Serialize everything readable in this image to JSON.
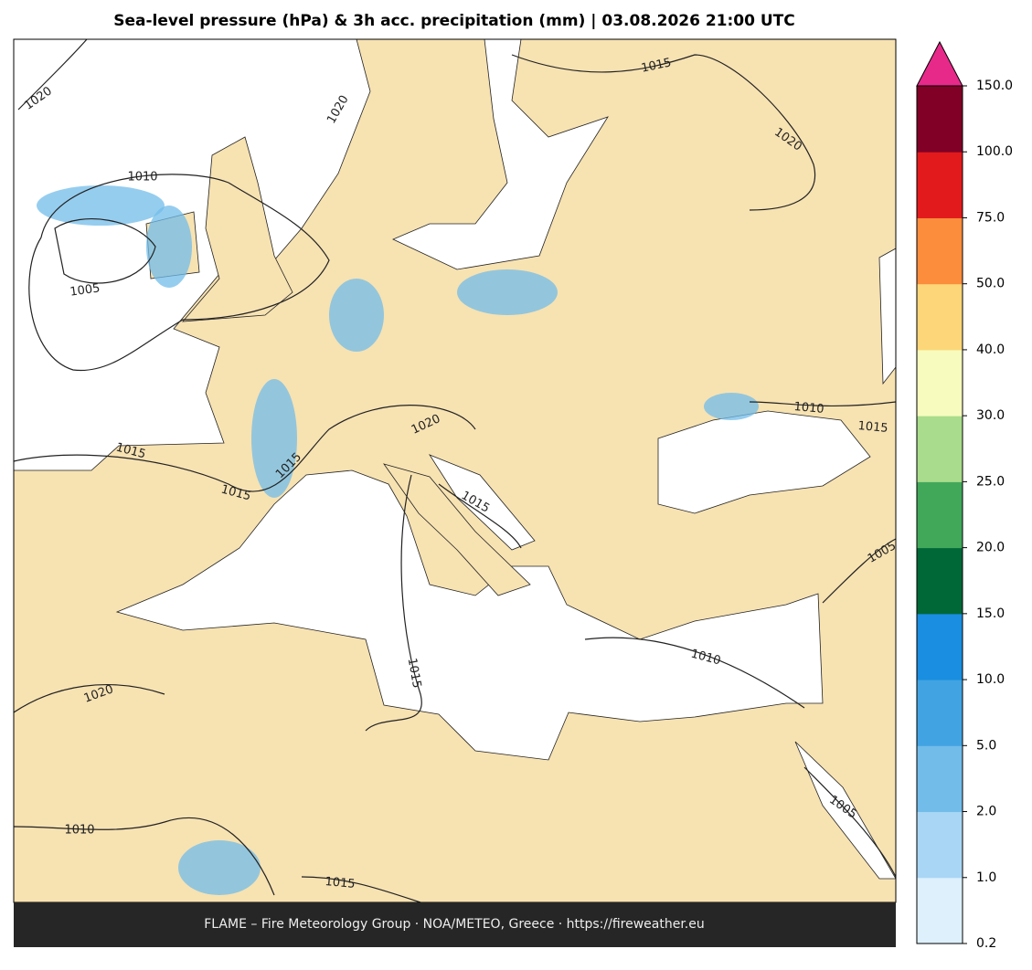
{
  "header": {
    "title": "Sea-level pressure (hPa) & 3h acc. precipitation (mm)  |  03.08.2026 21:00 UTC"
  },
  "map": {
    "isobar_labels": [
      "1020",
      "1015",
      "1020",
      "1020",
      "1010",
      "1005",
      "1015",
      "1015",
      "1020",
      "1015",
      "1015",
      "1010",
      "1015",
      "1005",
      "1010",
      "1015",
      "1020",
      "1010",
      "1015",
      "1005"
    ]
  },
  "colorbar": {
    "ticks": [
      {
        "value": 0.2,
        "label": "0.2"
      },
      {
        "value": 1,
        "label": "1.0"
      },
      {
        "value": 2,
        "label": "2.0"
      },
      {
        "value": 5,
        "label": "5.0"
      },
      {
        "value": 10,
        "label": "10.0"
      },
      {
        "value": 15,
        "label": "15.0"
      },
      {
        "value": 20,
        "label": "20.0"
      },
      {
        "value": 25,
        "label": "25.0"
      },
      {
        "value": 30,
        "label": "30.0"
      },
      {
        "value": 40,
        "label": "40.0"
      },
      {
        "value": 50,
        "label": "50.0"
      },
      {
        "value": 75,
        "label": "75.0"
      },
      {
        "value": 100,
        "label": "100.0"
      },
      {
        "value": 150,
        "label": "150.0"
      }
    ],
    "colors": [
      "#ddf0fc",
      "#a9d6f5",
      "#72bcea",
      "#42a3e2",
      "#1a8ee0",
      "#006837",
      "#41a85a",
      "#a9dc8c",
      "#f7fbbd",
      "#fdd679",
      "#fc8d3d",
      "#e31a1c",
      "#800026"
    ],
    "extend_color": "#e7298a"
  },
  "footer": {
    "credit": "FLAME – Fire Meteorology Group · NOA/METEO, Greece · https://fireweather.eu"
  }
}
